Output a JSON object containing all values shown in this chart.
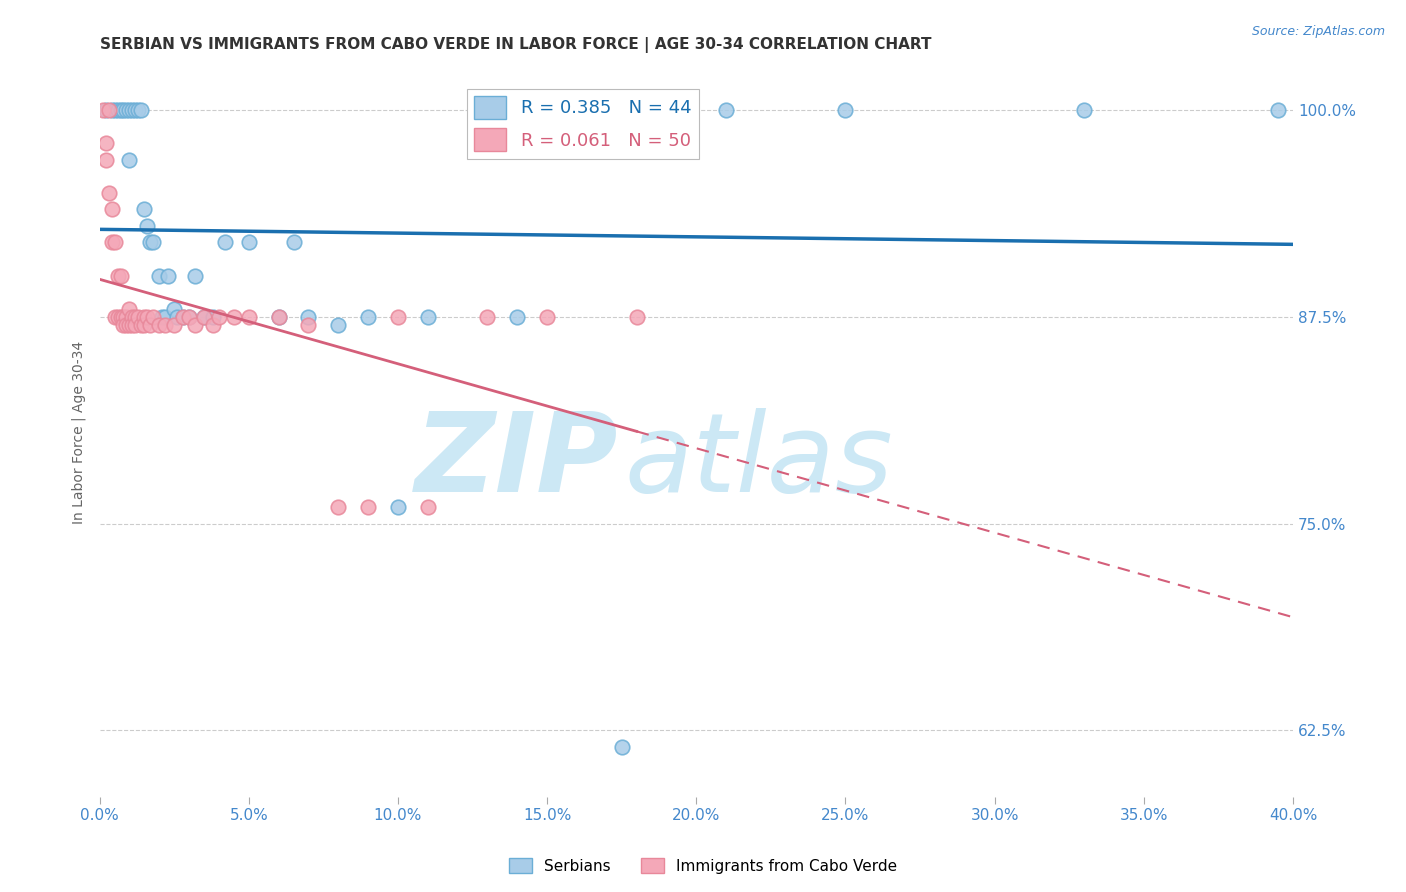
{
  "title": "SERBIAN VS IMMIGRANTS FROM CABO VERDE IN LABOR FORCE | AGE 30-34 CORRELATION CHART",
  "source": "Source: ZipAtlas.com",
  "ylabel": "In Labor Force | Age 30-34",
  "xlim": [
    0.0,
    0.4
  ],
  "ylim": [
    0.585,
    1.025
  ],
  "yticks": [
    0.625,
    0.75,
    0.875,
    1.0
  ],
  "ytick_labels": [
    "62.5%",
    "75.0%",
    "87.5%",
    "100.0%"
  ],
  "serbians_x": [
    0.002,
    0.004,
    0.005,
    0.006,
    0.007,
    0.008,
    0.009,
    0.01,
    0.01,
    0.011,
    0.012,
    0.013,
    0.014,
    0.015,
    0.016,
    0.017,
    0.018,
    0.02,
    0.021,
    0.022,
    0.023,
    0.025,
    0.026,
    0.028,
    0.03,
    0.032,
    0.035,
    0.038,
    0.042,
    0.05,
    0.06,
    0.065,
    0.07,
    0.08,
    0.09,
    0.1,
    0.11,
    0.14,
    0.16,
    0.175,
    0.21,
    0.25,
    0.33,
    0.395
  ],
  "serbians_y": [
    1.0,
    1.0,
    1.0,
    1.0,
    1.0,
    1.0,
    1.0,
    0.97,
    1.0,
    1.0,
    1.0,
    1.0,
    1.0,
    0.94,
    0.93,
    0.92,
    0.92,
    0.9,
    0.875,
    0.875,
    0.9,
    0.88,
    0.875,
    0.875,
    0.875,
    0.9,
    0.875,
    0.875,
    0.92,
    0.92,
    0.875,
    0.92,
    0.875,
    0.87,
    0.875,
    0.76,
    0.875,
    0.875,
    1.0,
    0.615,
    1.0,
    1.0,
    1.0,
    1.0
  ],
  "caboverde_x": [
    0.001,
    0.002,
    0.002,
    0.003,
    0.003,
    0.004,
    0.004,
    0.005,
    0.005,
    0.006,
    0.006,
    0.007,
    0.007,
    0.008,
    0.008,
    0.009,
    0.009,
    0.01,
    0.01,
    0.011,
    0.011,
    0.012,
    0.012,
    0.013,
    0.014,
    0.015,
    0.015,
    0.016,
    0.017,
    0.018,
    0.02,
    0.022,
    0.025,
    0.028,
    0.03,
    0.032,
    0.035,
    0.038,
    0.04,
    0.045,
    0.05,
    0.06,
    0.07,
    0.08,
    0.09,
    0.1,
    0.11,
    0.13,
    0.15,
    0.18
  ],
  "caboverde_y": [
    1.0,
    0.97,
    0.98,
    0.95,
    1.0,
    0.94,
    0.92,
    0.92,
    0.875,
    0.9,
    0.875,
    0.9,
    0.875,
    0.875,
    0.87,
    0.875,
    0.87,
    0.88,
    0.87,
    0.875,
    0.87,
    0.875,
    0.87,
    0.875,
    0.87,
    0.875,
    0.87,
    0.875,
    0.87,
    0.875,
    0.87,
    0.87,
    0.87,
    0.875,
    0.875,
    0.87,
    0.875,
    0.87,
    0.875,
    0.875,
    0.875,
    0.875,
    0.87,
    0.76,
    0.76,
    0.875,
    0.76,
    0.875,
    0.875,
    0.875
  ],
  "blue_line_color": "#1a6faf",
  "pink_line_color": "#d45f7a",
  "blue_dot_facecolor": "#a8cce8",
  "pink_dot_facecolor": "#f4a8b8",
  "blue_dot_edge": "#6baed6",
  "pink_dot_edge": "#e8889a",
  "watermark_zip": "ZIP",
  "watermark_atlas": "atlas",
  "watermark_color": "#cce8f5",
  "grid_color": "#cccccc",
  "title_color": "#333333",
  "axis_label_color": "#4488cc",
  "bg_color": "#ffffff",
  "R_serbian": 0.385,
  "N_serbian": 44,
  "R_caboverde": 0.061,
  "N_caboverde": 50
}
